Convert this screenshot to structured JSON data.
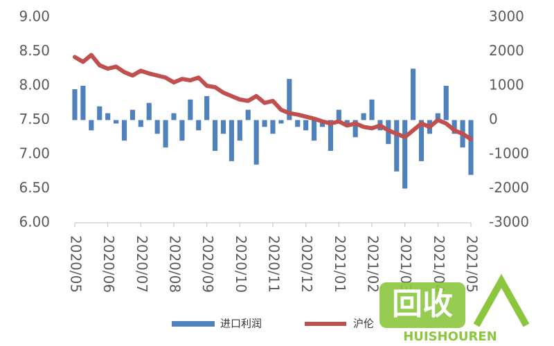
{
  "chart_data": {
    "type": "combo",
    "categories": [
      "2020/05",
      null,
      null,
      null,
      "2020/06",
      null,
      null,
      null,
      "2020/07",
      null,
      null,
      null,
      "2020/08",
      null,
      null,
      null,
      "2020/09",
      null,
      null,
      null,
      "2020/10",
      null,
      null,
      null,
      "2020/11",
      null,
      null,
      null,
      "2020/12",
      null,
      null,
      null,
      "2021/01",
      null,
      null,
      null,
      "2021/02",
      null,
      null,
      null,
      "2021/03",
      null,
      null,
      null,
      "2021/04",
      null,
      null,
      null,
      "2021/05"
    ],
    "series": [
      {
        "name": "进口利润",
        "type": "bar",
        "axis": "y2",
        "color": "#4f81bd",
        "values": [
          900,
          1000,
          -300,
          400,
          200,
          -100,
          -600,
          300,
          -200,
          500,
          -400,
          -800,
          200,
          -600,
          600,
          -300,
          700,
          -900,
          -400,
          -1200,
          -600,
          300,
          -1300,
          -200,
          -400,
          -100,
          1200,
          -200,
          -300,
          -600,
          -200,
          -900,
          300,
          -200,
          -500,
          200,
          600,
          -300,
          -700,
          -1500,
          -2000,
          1500,
          -1200,
          -400,
          200,
          1000,
          -400,
          -800,
          -1600
        ]
      },
      {
        "name": "沪伦",
        "type": "line",
        "axis": "y",
        "color": "#c0504d",
        "values": [
          8.42,
          8.35,
          8.45,
          8.3,
          8.25,
          8.28,
          8.2,
          8.15,
          8.22,
          8.18,
          8.15,
          8.12,
          8.05,
          8.1,
          8.08,
          8.12,
          8.0,
          7.98,
          7.9,
          7.85,
          7.8,
          7.78,
          7.85,
          7.75,
          7.78,
          7.65,
          7.6,
          7.58,
          7.55,
          7.52,
          7.48,
          7.45,
          7.48,
          7.42,
          7.45,
          7.4,
          7.38,
          7.42,
          7.35,
          7.3,
          7.25,
          7.35,
          7.45,
          7.4,
          7.5,
          7.45,
          7.35,
          7.3,
          7.22
        ]
      }
    ],
    "ylim": [
      6,
      9
    ],
    "yticks": [
      {
        "value": 9,
        "label": "9.00"
      },
      {
        "value": 8.5,
        "label": "8.50"
      },
      {
        "value": 8,
        "label": "8.00"
      },
      {
        "value": 7.5,
        "label": "7.50"
      },
      {
        "value": 7,
        "label": "7.00"
      },
      {
        "value": 6.5,
        "label": "6.50"
      },
      {
        "value": 6,
        "label": "6.00"
      }
    ],
    "y2lim": [
      -3000,
      3000
    ],
    "y2ticks": [
      3000,
      2000,
      1000,
      0,
      -1000,
      -2000,
      -3000
    ],
    "legend": "bottom"
  },
  "watermark": {
    "logo": "回收",
    "brand": "HUISHOUREN"
  }
}
